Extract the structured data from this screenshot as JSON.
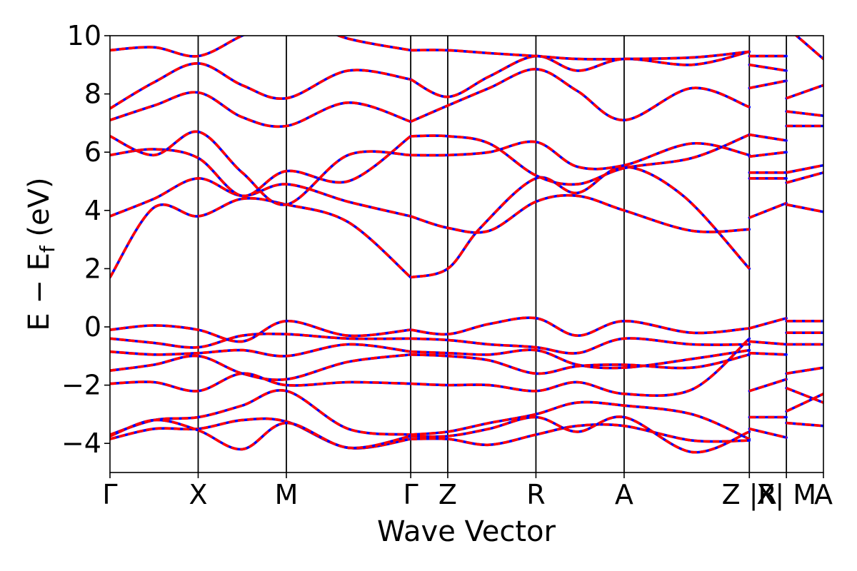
{
  "chart_data": {
    "type": "line",
    "title": "",
    "xlabel": "Wave Vector",
    "ylabel_parts": {
      "main": "E − E",
      "sub": "f",
      "unit": " (eV)"
    },
    "ylim": [
      -5,
      10
    ],
    "yticks": [
      -4,
      -2,
      0,
      2,
      4,
      6,
      8,
      10
    ],
    "ytick_labels": [
      "−4",
      "−2",
      "0",
      "2",
      "4",
      "6",
      "8",
      "10"
    ],
    "k_path_labels": [
      "Γ",
      "X",
      "M",
      "Γ",
      "Z",
      "R",
      "A",
      "Z |R",
      "X| M",
      "A"
    ],
    "k_path_positions": [
      0.0,
      1.0,
      2.0,
      3.41,
      3.83,
      4.83,
      5.83,
      7.25,
      7.67,
      8.09
    ],
    "grid": false,
    "legend": "none",
    "line_styles": [
      {
        "color": "#ff0000",
        "style": "solid"
      },
      {
        "color": "#0000ff",
        "style": "dotted"
      }
    ],
    "series": [
      {
        "x": [
          0,
          0.5,
          1,
          1.5,
          2,
          2.7,
          3.41
        ],
        "values": [
          1.7,
          4.1,
          3.8,
          4.4,
          4.2,
          3.6,
          1.7
        ]
      },
      {
        "x": [
          3.41,
          3.83,
          4.2,
          4.83,
          5.3,
          5.83,
          6.5,
          7.25
        ],
        "values": [
          1.7,
          2.0,
          3.4,
          5.1,
          4.6,
          5.5,
          4.5,
          2.0
        ]
      },
      {
        "x": [
          0,
          0.5,
          1,
          1.5,
          2,
          2.7,
          3.41
        ],
        "values": [
          3.8,
          4.4,
          5.1,
          4.5,
          4.9,
          4.3,
          3.8
        ]
      },
      {
        "x": [
          3.41,
          3.83,
          4.3,
          4.83,
          5.3,
          5.83,
          6.6,
          7.25
        ],
        "values": [
          3.8,
          3.4,
          3.3,
          4.3,
          4.5,
          4.0,
          3.3,
          3.35
        ]
      },
      {
        "x": [
          0,
          0.5,
          1,
          1.5,
          2,
          2.7,
          3.41
        ],
        "values": [
          5.9,
          6.1,
          5.8,
          4.5,
          5.35,
          5.0,
          6.55
        ]
      },
      {
        "x": [
          3.41,
          3.83,
          4.3,
          4.83,
          5.3,
          5.83,
          6.6,
          7.25
        ],
        "values": [
          6.55,
          6.55,
          6.3,
          5.2,
          4.9,
          5.45,
          5.8,
          6.6
        ]
      },
      {
        "x": [
          0,
          0.5,
          1,
          1.5,
          2,
          2.7,
          3.41
        ],
        "values": [
          6.55,
          5.9,
          6.7,
          5.3,
          4.2,
          5.9,
          5.9
        ]
      },
      {
        "x": [
          3.41,
          3.83,
          4.3,
          4.83,
          5.3,
          5.83,
          6.6,
          7.25
        ],
        "values": [
          5.9,
          5.9,
          6.0,
          6.35,
          5.5,
          5.55,
          6.3,
          5.9
        ]
      },
      {
        "x": [
          0,
          0.5,
          1,
          1.5,
          2,
          2.7,
          3.41
        ],
        "values": [
          7.1,
          7.6,
          8.05,
          7.2,
          6.9,
          7.7,
          7.05
        ]
      },
      {
        "x": [
          3.41,
          3.83,
          4.3,
          4.83,
          5.3,
          5.83,
          6.6,
          7.25
        ],
        "values": [
          7.05,
          7.6,
          8.2,
          8.85,
          8.1,
          7.1,
          8.2,
          7.55
        ]
      },
      {
        "x": [
          0,
          0.5,
          1,
          1.5,
          2,
          2.7,
          3.41
        ],
        "values": [
          7.5,
          8.4,
          9.05,
          8.3,
          7.85,
          8.8,
          8.5
        ]
      },
      {
        "x": [
          3.41,
          3.83,
          4.3,
          4.83,
          5.3,
          5.83,
          6.6,
          7.25
        ],
        "values": [
          8.5,
          7.9,
          8.6,
          9.3,
          8.8,
          9.2,
          9.0,
          9.45
        ]
      },
      {
        "x": [
          0,
          0.5,
          1,
          1.5,
          2,
          2.7,
          3.41
        ],
        "values": [
          9.5,
          9.6,
          9.3,
          10.0,
          10.6,
          9.9,
          9.5
        ]
      },
      {
        "x": [
          3.41,
          3.83,
          4.3,
          4.83,
          5.3,
          5.83,
          6.6,
          7.25
        ],
        "values": [
          9.5,
          9.5,
          9.4,
          9.3,
          9.2,
          9.2,
          9.25,
          9.45
        ]
      },
      {
        "x": [
          0,
          0.5,
          1,
          1.5,
          2,
          2.7,
          3.41
        ],
        "values": [
          -0.1,
          0.05,
          -0.1,
          -0.5,
          0.2,
          -0.3,
          -0.1
        ]
      },
      {
        "x": [
          3.41,
          3.83,
          4.3,
          4.83,
          5.3,
          5.83,
          6.6,
          7.25
        ],
        "values": [
          -0.1,
          -0.25,
          0.1,
          0.3,
          -0.3,
          0.2,
          -0.2,
          -0.05
        ]
      },
      {
        "x": [
          0,
          0.5,
          1,
          1.5,
          2,
          2.7,
          3.41
        ],
        "values": [
          -0.4,
          -0.55,
          -0.7,
          -0.3,
          -0.25,
          -0.4,
          -0.4
        ]
      },
      {
        "x": [
          3.41,
          3.83,
          4.3,
          4.83,
          5.3,
          5.83,
          6.6,
          7.25
        ],
        "values": [
          -0.4,
          -0.45,
          -0.6,
          -0.7,
          -0.9,
          -0.4,
          -0.6,
          -0.6
        ]
      },
      {
        "x": [
          0,
          0.5,
          1,
          1.5,
          2,
          2.7,
          3.41
        ],
        "values": [
          -0.85,
          -0.95,
          -0.9,
          -0.8,
          -1.0,
          -0.6,
          -0.85
        ]
      },
      {
        "x": [
          3.41,
          3.83,
          4.3,
          4.83,
          5.3,
          5.83,
          6.6,
          7.25
        ],
        "values": [
          -0.85,
          -0.9,
          -0.95,
          -0.8,
          -1.3,
          -1.4,
          -1.1,
          -0.8
        ]
      },
      {
        "x": [
          0,
          0.5,
          1,
          1.5,
          2,
          2.7,
          3.41
        ],
        "values": [
          -1.5,
          -1.3,
          -1.0,
          -1.6,
          -1.8,
          -1.2,
          -0.95
        ]
      },
      {
        "x": [
          3.41,
          3.83,
          4.3,
          4.83,
          5.3,
          5.83,
          6.6,
          7.25
        ],
        "values": [
          -0.95,
          -1.0,
          -1.15,
          -1.6,
          -1.35,
          -1.3,
          -1.4,
          -0.95
        ]
      },
      {
        "x": [
          0,
          0.5,
          1,
          1.5,
          2,
          2.7,
          3.41
        ],
        "values": [
          -1.95,
          -1.9,
          -2.2,
          -1.6,
          -2.0,
          -1.9,
          -1.95
        ]
      },
      {
        "x": [
          3.41,
          3.83,
          4.3,
          4.83,
          5.3,
          5.83,
          6.6,
          7.25
        ],
        "values": [
          -1.95,
          -2.0,
          -2.0,
          -2.2,
          -1.9,
          -2.3,
          -2.15,
          -0.4
        ]
      },
      {
        "x": [
          0,
          0.5,
          1,
          1.5,
          2,
          2.7,
          3.41
        ],
        "values": [
          -3.7,
          -3.2,
          -3.1,
          -2.7,
          -2.2,
          -3.5,
          -3.7
        ]
      },
      {
        "x": [
          3.41,
          3.83,
          4.3,
          4.83,
          5.3,
          5.83,
          6.6,
          7.25
        ],
        "values": [
          -3.7,
          -3.6,
          -3.3,
          -3.0,
          -2.6,
          -2.7,
          -3.0,
          -3.85
        ]
      },
      {
        "x": [
          0,
          0.5,
          1,
          1.5,
          2,
          2.7,
          3.41
        ],
        "values": [
          -3.85,
          -3.5,
          -3.5,
          -3.2,
          -3.25,
          -4.15,
          -3.85
        ]
      },
      {
        "x": [
          3.41,
          3.83,
          4.3,
          4.83,
          5.3,
          5.83,
          6.6,
          7.25
        ],
        "values": [
          -3.85,
          -3.85,
          -4.05,
          -3.7,
          -3.4,
          -3.4,
          -3.9,
          -3.9
        ]
      },
      {
        "x": [
          0,
          0.5,
          1,
          1.5,
          2,
          2.7,
          3.41
        ],
        "values": [
          -3.75,
          -3.2,
          -3.55,
          -4.2,
          -3.3,
          -4.15,
          -3.75
        ]
      },
      {
        "x": [
          3.41,
          3.83,
          4.3,
          4.83,
          5.3,
          5.83,
          6.6,
          7.25
        ],
        "values": [
          -3.75,
          -3.75,
          -3.5,
          -3.1,
          -3.6,
          -3.1,
          -4.3,
          -3.6
        ]
      },
      {
        "x": [
          7.25,
          7.67
        ],
        "values": [
          -0.05,
          0.3
        ]
      },
      {
        "x": [
          7.25,
          7.67
        ],
        "values": [
          -0.5,
          -0.6
        ]
      },
      {
        "x": [
          7.25,
          7.67
        ],
        "values": [
          -0.9,
          -0.95
        ]
      },
      {
        "x": [
          7.25,
          7.67
        ],
        "values": [
          -2.2,
          -1.8
        ]
      },
      {
        "x": [
          7.25,
          7.67
        ],
        "values": [
          -3.1,
          -3.1
        ]
      },
      {
        "x": [
          7.25,
          7.67
        ],
        "values": [
          -3.5,
          -3.8
        ]
      },
      {
        "x": [
          7.25,
          7.67
        ],
        "values": [
          3.75,
          4.25
        ]
      },
      {
        "x": [
          7.25,
          7.67
        ],
        "values": [
          5.1,
          5.1
        ]
      },
      {
        "x": [
          7.25,
          7.67
        ],
        "values": [
          5.3,
          5.3
        ]
      },
      {
        "x": [
          7.25,
          7.67
        ],
        "values": [
          5.85,
          6.0
        ]
      },
      {
        "x": [
          7.25,
          7.67
        ],
        "values": [
          6.6,
          6.4
        ]
      },
      {
        "x": [
          7.25,
          7.67
        ],
        "values": [
          8.2,
          8.45
        ]
      },
      {
        "x": [
          7.25,
          7.67
        ],
        "values": [
          9.0,
          8.8
        ]
      },
      {
        "x": [
          7.25,
          7.67
        ],
        "values": [
          9.3,
          9.3
        ]
      },
      {
        "x": [
          7.67,
          8.09
        ],
        "values": [
          0.2,
          0.2
        ]
      },
      {
        "x": [
          7.67,
          8.09
        ],
        "values": [
          -0.2,
          -0.2
        ]
      },
      {
        "x": [
          7.67,
          8.09
        ],
        "values": [
          -0.6,
          -0.6
        ]
      },
      {
        "x": [
          7.67,
          8.09
        ],
        "values": [
          -1.6,
          -1.4
        ]
      },
      {
        "x": [
          7.67,
          8.09
        ],
        "values": [
          -2.1,
          -2.6
        ]
      },
      {
        "x": [
          7.67,
          8.09
        ],
        "values": [
          -2.9,
          -2.3
        ]
      },
      {
        "x": [
          7.67,
          8.09
        ],
        "values": [
          -3.3,
          -3.4
        ]
      },
      {
        "x": [
          7.67,
          8.09
        ],
        "values": [
          4.2,
          3.95
        ]
      },
      {
        "x": [
          7.67,
          8.09
        ],
        "values": [
          4.95,
          5.3
        ]
      },
      {
        "x": [
          7.67,
          8.09
        ],
        "values": [
          5.3,
          5.55
        ]
      },
      {
        "x": [
          7.67,
          8.09
        ],
        "values": [
          6.9,
          6.9
        ]
      },
      {
        "x": [
          7.67,
          8.09
        ],
        "values": [
          7.4,
          7.25
        ]
      },
      {
        "x": [
          7.67,
          8.09
        ],
        "values": [
          7.85,
          8.3
        ]
      },
      {
        "x": [
          7.67,
          8.09
        ],
        "values": [
          10.3,
          9.2
        ]
      }
    ]
  }
}
